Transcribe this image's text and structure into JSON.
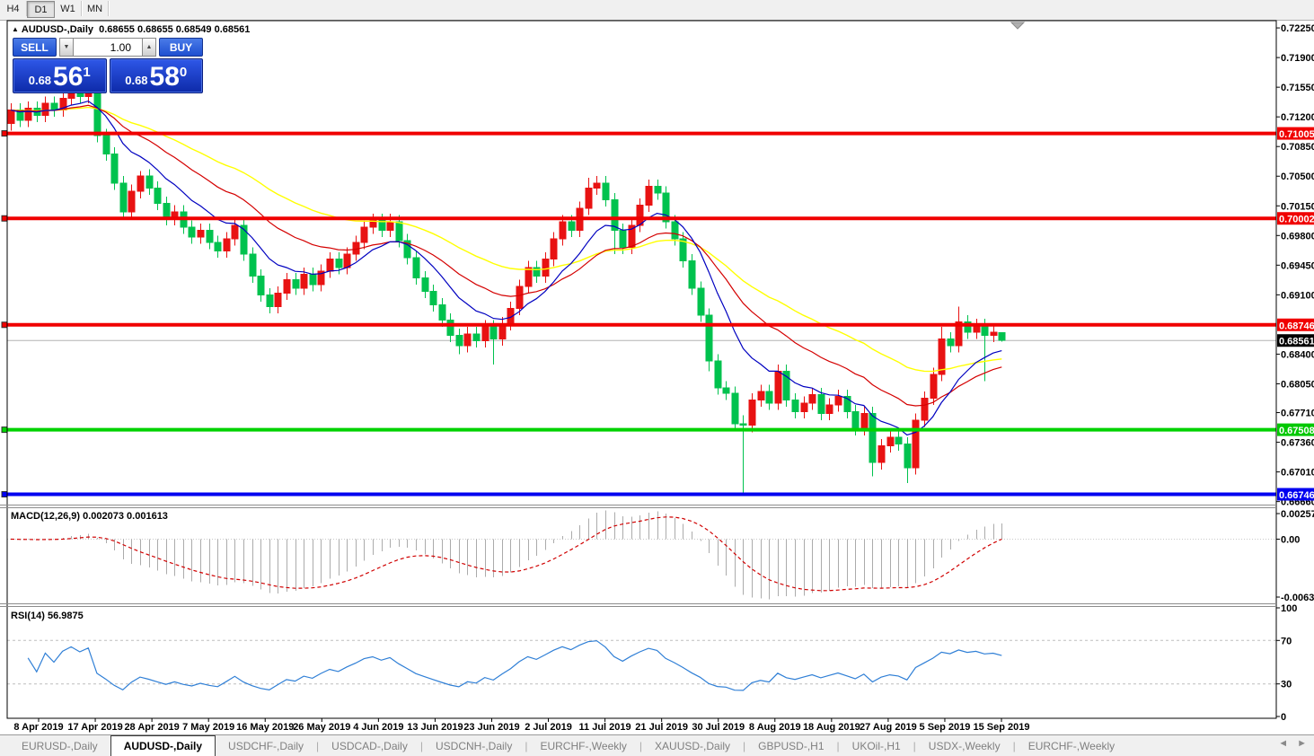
{
  "toolbar": {
    "timeframes": [
      {
        "label": "H4",
        "active": false
      },
      {
        "label": "D1",
        "active": true
      },
      {
        "label": "W1",
        "active": false
      },
      {
        "label": "MN",
        "active": false
      }
    ]
  },
  "chart_header": {
    "marker": "▲",
    "symbol": "AUDUSD-,Daily",
    "open": "0.68655",
    "high": "0.68655",
    "low": "0.68549",
    "close": "0.68561"
  },
  "trade_panel": {
    "sell_label": "SELL",
    "buy_label": "BUY",
    "volume": "1.00",
    "spin_down": "▼",
    "spin_up": "▲",
    "sell_price": {
      "prefix": "0.68",
      "big": "56",
      "sup": "1"
    },
    "buy_price": {
      "prefix": "0.68",
      "big": "58",
      "sup": "0"
    }
  },
  "price_axis": {
    "ticks": [
      "0.72250",
      "0.71900",
      "0.71550",
      "0.71200",
      "0.70850",
      "0.70500",
      "0.70150",
      "0.69800",
      "0.69450",
      "0.69100",
      "0.68400",
      "0.68050",
      "0.67710",
      "0.67360",
      "0.67010",
      "0.66660"
    ]
  },
  "levels": [
    {
      "label": "0.71005",
      "price": 0.71005,
      "color": "#F00000"
    },
    {
      "label": "0.70002",
      "price": 0.70002,
      "color": "#F00000"
    },
    {
      "label": "0.68746",
      "price": 0.68746,
      "color": "#F00000"
    },
    {
      "label": "0.67508",
      "price": 0.67508,
      "color": "#00D200"
    },
    {
      "label": "0.66746",
      "price": 0.66746,
      "color": "#0000F0"
    }
  ],
  "current_price": {
    "label": "0.68561",
    "price": 0.68561,
    "badge_bg": "#000000"
  },
  "macd_panel": {
    "label": "MACD(12,26,9)",
    "value_main": "0.002073",
    "value_signal": "0.001613",
    "axis_max": "0.002574",
    "axis_zero": "0.00",
    "axis_min": "-0.006326"
  },
  "rsi_panel": {
    "label": "RSI(14)",
    "value": "56.9875",
    "axis": [
      "100",
      "70",
      "30",
      "0"
    ],
    "guides": [
      70,
      30
    ]
  },
  "date_axis": {
    "labels": [
      "8 Apr 2019",
      "17 Apr 2019",
      "28 Apr 2019",
      "7 May 2019",
      "16 May 2019",
      "26 May 2019",
      "4 Jun 2019",
      "13 Jun 2019",
      "23 Jun 2019",
      "2 Jul 2019",
      "11 Jul 2019",
      "21 Jul 2019",
      "30 Jul 2019",
      "8 Aug 2019",
      "18 Aug 2019",
      "27 Aug 2019",
      "5 Sep 2019",
      "15 Sep 2019"
    ]
  },
  "tabs": {
    "items": [
      {
        "label": "EURUSD-,Daily",
        "active": false
      },
      {
        "label": "AUDUSD-,Daily",
        "active": true
      },
      {
        "label": "USDCHF-,Daily",
        "active": false
      },
      {
        "label": "USDCAD-,Daily",
        "active": false
      },
      {
        "label": "USDCNH-,Daily",
        "active": false
      },
      {
        "label": "EURCHF-,Weekly",
        "active": false
      },
      {
        "label": "XAUUSD-,Daily",
        "active": false
      },
      {
        "label": "GBPUSD-,H1",
        "active": false
      },
      {
        "label": "UKOil-,H1",
        "active": false
      },
      {
        "label": "USDX-,Weekly",
        "active": false
      },
      {
        "label": "EURCHF-,Weekly",
        "active": false
      }
    ],
    "scroll_left": "◄",
    "scroll_right": "►"
  },
  "chart_data": {
    "type": "candlestick",
    "title": "AUDUSD-,Daily",
    "ylim": [
      0.66635,
      0.72325
    ],
    "bull_color": "#E81212",
    "bear_color": "#00C24E",
    "ma_colors": [
      "#FFFF00",
      "#D40000",
      "#0000C0"
    ],
    "macd_bar_color": "#ABABAB",
    "macd_signal_color": "#D00000",
    "rsi_color": "#2F7FD6",
    "open": [
      0.7112,
      0.7128,
      0.7116,
      0.713,
      0.7122,
      0.7136,
      0.7128,
      0.7142,
      0.715,
      0.7144,
      0.7152,
      0.7098,
      0.7076,
      0.7042,
      0.7008,
      0.7032,
      0.705,
      0.7036,
      0.7018,
      0.7,
      0.7008,
      0.699,
      0.6978,
      0.6986,
      0.6972,
      0.6962,
      0.6976,
      0.6992,
      0.6958,
      0.6932,
      0.691,
      0.6896,
      0.6912,
      0.6928,
      0.6918,
      0.6934,
      0.6922,
      0.6938,
      0.6952,
      0.6942,
      0.6958,
      0.6972,
      0.699,
      0.6998,
      0.6986,
      0.6996,
      0.6974,
      0.6954,
      0.693,
      0.6914,
      0.6898,
      0.688,
      0.6862,
      0.685,
      0.6864,
      0.6856,
      0.6872,
      0.6858,
      0.6876,
      0.6894,
      0.692,
      0.6942,
      0.6932,
      0.6952,
      0.6976,
      0.6996,
      0.6986,
      0.7012,
      0.7036,
      0.7042,
      0.7022,
      0.6986,
      0.6966,
      0.6992,
      0.7016,
      0.7038,
      0.703,
      0.6996,
      0.6976,
      0.695,
      0.6918,
      0.6886,
      0.6832,
      0.68,
      0.6794,
      0.6758,
      0.6756,
      0.6786,
      0.6796,
      0.6782,
      0.682,
      0.6786,
      0.6772,
      0.6782,
      0.6792,
      0.677,
      0.678,
      0.679,
      0.6772,
      0.6752,
      0.677,
      0.6712,
      0.6732,
      0.6742,
      0.6734,
      0.6706,
      0.6762,
      0.6788,
      0.6816,
      0.6858,
      0.685,
      0.6878,
      0.6866,
      0.6874,
      0.6862,
      0.68655
    ],
    "high": [
      0.7136,
      0.7136,
      0.7138,
      0.7138,
      0.7144,
      0.7144,
      0.715,
      0.7158,
      0.7158,
      0.716,
      0.7156,
      0.7106,
      0.7084,
      0.705,
      0.704,
      0.7056,
      0.7058,
      0.7044,
      0.7026,
      0.7016,
      0.7016,
      0.6998,
      0.6994,
      0.6994,
      0.698,
      0.6984,
      0.7,
      0.7,
      0.6966,
      0.694,
      0.6918,
      0.692,
      0.6936,
      0.6936,
      0.6942,
      0.6942,
      0.6946,
      0.696,
      0.696,
      0.6966,
      0.698,
      0.6998,
      0.7006,
      0.7006,
      0.7006,
      0.7004,
      0.6982,
      0.6962,
      0.6938,
      0.6922,
      0.6906,
      0.6888,
      0.687,
      0.6872,
      0.6872,
      0.688,
      0.688,
      0.6884,
      0.6902,
      0.6928,
      0.695,
      0.695,
      0.696,
      0.6984,
      0.7004,
      0.7004,
      0.702,
      0.7048,
      0.705,
      0.705,
      0.703,
      0.6994,
      0.7,
      0.7024,
      0.7046,
      0.7046,
      0.7038,
      0.7004,
      0.6984,
      0.6958,
      0.6926,
      0.6894,
      0.684,
      0.6808,
      0.6802,
      0.6768,
      0.6794,
      0.6804,
      0.6804,
      0.6828,
      0.6828,
      0.6794,
      0.679,
      0.68,
      0.68,
      0.6788,
      0.6798,
      0.6798,
      0.678,
      0.6778,
      0.6778,
      0.674,
      0.675,
      0.675,
      0.6742,
      0.677,
      0.6796,
      0.6824,
      0.6872,
      0.6866,
      0.6896,
      0.6886,
      0.6882,
      0.6882,
      0.6876,
      0.68655
    ],
    "low": [
      0.7104,
      0.7108,
      0.7108,
      0.7114,
      0.7114,
      0.712,
      0.712,
      0.7134,
      0.7136,
      0.7136,
      0.709,
      0.7068,
      0.7034,
      0.7,
      0.7,
      0.7024,
      0.7028,
      0.701,
      0.6992,
      0.6992,
      0.6982,
      0.697,
      0.697,
      0.6964,
      0.6954,
      0.6954,
      0.6968,
      0.695,
      0.6924,
      0.6902,
      0.6888,
      0.6888,
      0.6904,
      0.691,
      0.691,
      0.6914,
      0.6914,
      0.693,
      0.6934,
      0.6934,
      0.695,
      0.6964,
      0.6982,
      0.6978,
      0.6978,
      0.6966,
      0.6946,
      0.6922,
      0.6906,
      0.689,
      0.6872,
      0.6854,
      0.684,
      0.6842,
      0.6848,
      0.6848,
      0.6828,
      0.685,
      0.6868,
      0.6886,
      0.6912,
      0.6924,
      0.6924,
      0.6944,
      0.6968,
      0.6978,
      0.6978,
      0.7004,
      0.7028,
      0.7014,
      0.6958,
      0.6958,
      0.6958,
      0.6984,
      0.7008,
      0.7022,
      0.6988,
      0.6968,
      0.6942,
      0.691,
      0.6878,
      0.682,
      0.6792,
      0.6786,
      0.675,
      0.6676,
      0.6748,
      0.6778,
      0.6774,
      0.6774,
      0.6778,
      0.6764,
      0.6764,
      0.6774,
      0.6762,
      0.6762,
      0.6772,
      0.6764,
      0.6744,
      0.6744,
      0.6696,
      0.6704,
      0.6724,
      0.6726,
      0.6688,
      0.6698,
      0.6754,
      0.678,
      0.6808,
      0.6842,
      0.6842,
      0.6858,
      0.6858,
      0.6808,
      0.6854,
      0.68549
    ],
    "close": [
      0.7128,
      0.7116,
      0.713,
      0.7122,
      0.7136,
      0.7128,
      0.7142,
      0.715,
      0.7144,
      0.7152,
      0.7098,
      0.7076,
      0.7042,
      0.7008,
      0.7032,
      0.705,
      0.7036,
      0.7018,
      0.7,
      0.7008,
      0.699,
      0.6978,
      0.6986,
      0.6972,
      0.6962,
      0.6976,
      0.6992,
      0.6958,
      0.6932,
      0.691,
      0.6896,
      0.6912,
      0.6928,
      0.6918,
      0.6934,
      0.6922,
      0.6938,
      0.6952,
      0.6942,
      0.6958,
      0.6972,
      0.699,
      0.6998,
      0.6986,
      0.6996,
      0.6974,
      0.6954,
      0.693,
      0.6914,
      0.6898,
      0.688,
      0.6862,
      0.685,
      0.6864,
      0.6856,
      0.6872,
      0.6858,
      0.6876,
      0.6894,
      0.692,
      0.6942,
      0.6932,
      0.6952,
      0.6976,
      0.6996,
      0.6986,
      0.7012,
      0.7036,
      0.7042,
      0.7022,
      0.6986,
      0.6966,
      0.6992,
      0.7016,
      0.7038,
      0.703,
      0.6996,
      0.6976,
      0.695,
      0.6918,
      0.6886,
      0.6832,
      0.68,
      0.6794,
      0.6758,
      0.6756,
      0.6786,
      0.6796,
      0.6782,
      0.682,
      0.6786,
      0.6772,
      0.6782,
      0.6792,
      0.677,
      0.678,
      0.679,
      0.6772,
      0.6752,
      0.677,
      0.6712,
      0.6732,
      0.6742,
      0.6734,
      0.6706,
      0.6762,
      0.6788,
      0.6816,
      0.6858,
      0.685,
      0.6878,
      0.6866,
      0.6874,
      0.6862,
      0.6866,
      0.68561
    ]
  }
}
